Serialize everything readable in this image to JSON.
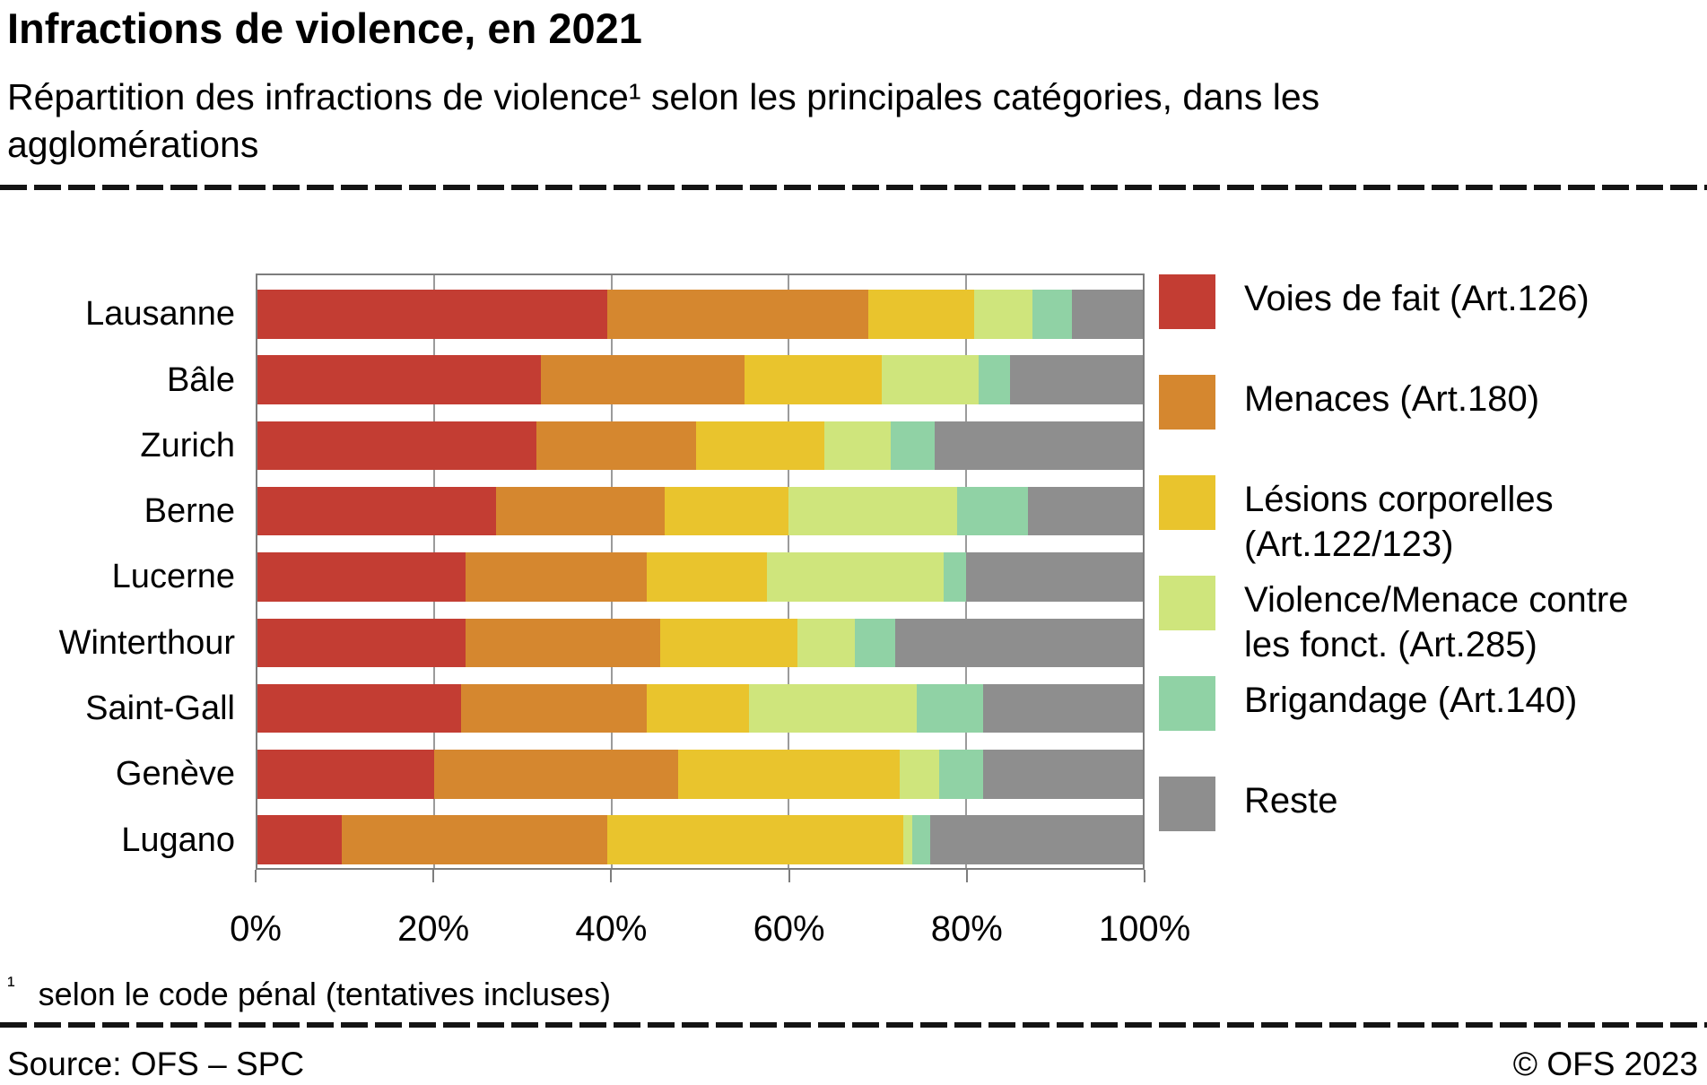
{
  "header": {
    "title": "Infractions de violence, en 2021",
    "subtitle": "Répartition des infractions de violence¹ selon les principales catégories, dans les agglomérations"
  },
  "chart_data": {
    "type": "bar",
    "orientation": "horizontal",
    "stacked": true,
    "unit": "percent",
    "title": "Infractions de violence, en 2021",
    "xlabel": "",
    "ylabel": "",
    "xlim": [
      0,
      100
    ],
    "grid": true,
    "x_ticks": [
      "0%",
      "20%",
      "40%",
      "60%",
      "80%",
      "100%"
    ],
    "x_tick_values": [
      0,
      20,
      40,
      60,
      80,
      100
    ],
    "categories": [
      "Lausanne",
      "Bâle",
      "Zurich",
      "Berne",
      "Lucerne",
      "Winterthour",
      "Saint-Gall",
      "Genève",
      "Lugano"
    ],
    "series": [
      {
        "name": "Voies de fait (Art.126)",
        "color": "#c33d33",
        "values": [
          39.5,
          32,
          31.5,
          27,
          23.5,
          23.5,
          23,
          20,
          9.5
        ]
      },
      {
        "name": "Menaces (Art.180)",
        "color": "#d5872f",
        "values": [
          29.5,
          23,
          18,
          19,
          20.5,
          22,
          21,
          27.5,
          30
        ]
      },
      {
        "name": "Lésions corporelles (Art.122/123)",
        "color": "#e9c42d",
        "values": [
          12,
          15.5,
          14.5,
          14,
          13.5,
          15.5,
          11.5,
          25,
          33.5
        ]
      },
      {
        "name": "Violence/Menace contre les fonct. (Art.285)",
        "color": "#cfe57c",
        "values": [
          6.5,
          11,
          7.5,
          19,
          20,
          6.5,
          19,
          4.5,
          1
        ]
      },
      {
        "name": "Brigandage (Art.140)",
        "color": "#90d2a5",
        "values": [
          4.5,
          3.5,
          5,
          8,
          2.5,
          4.5,
          7.5,
          5,
          2
        ]
      },
      {
        "name": "Reste",
        "color": "#8e8e8e",
        "values": [
          8,
          15,
          23.5,
          13,
          20,
          28,
          18,
          18,
          24
        ]
      }
    ],
    "legend_position": "right"
  },
  "legend": {
    "items": [
      {
        "lines": [
          "Voies de fait (Art.126)"
        ],
        "color": "#c33d33"
      },
      {
        "lines": [
          "Menaces (Art.180)"
        ],
        "color": "#d5872f"
      },
      {
        "lines": [
          "Lésions corporelles",
          "(Art.122/123)"
        ],
        "color": "#e9c42d"
      },
      {
        "lines": [
          "Violence/Menace contre",
          "les fonct. (Art.285)"
        ],
        "color": "#cfe57c"
      },
      {
        "lines": [
          "Brigandage (Art.140)"
        ],
        "color": "#90d2a5"
      },
      {
        "lines": [
          "Reste"
        ],
        "color": "#8e8e8e"
      }
    ]
  },
  "footnote": {
    "marker": "¹",
    "text": "selon le code pénal (tentatives incluses)"
  },
  "footer": {
    "source": "Source: OFS – SPC",
    "copyright": "© OFS 2023"
  }
}
